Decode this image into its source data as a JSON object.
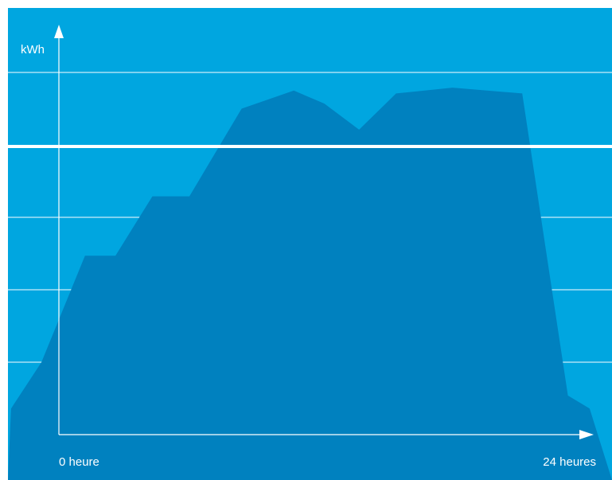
{
  "colors": {
    "background": "#00a6e0",
    "area": "#0081bf",
    "grid": "#ffffff",
    "axis": "#ffffff",
    "text": "#ffffff"
  },
  "chart_data": {
    "type": "area",
    "title": "",
    "ylabel": "kWh",
    "xlabel": "",
    "x_tick_labels": [
      "0 heure",
      "24 heures"
    ],
    "grid": true,
    "threshold_line": true,
    "series": [
      {
        "x": [
          -2.2,
          -0.8,
          1.2,
          2.6,
          4.3,
          6.0,
          8.4,
          10.8,
          12.2,
          13.8,
          15.5,
          18.1,
          21.3,
          23.4,
          24.4
        ],
        "values": [
          0.36,
          1.0,
          2.47,
          2.47,
          3.29,
          3.29,
          4.5,
          4.75,
          4.57,
          4.21,
          4.71,
          4.79,
          4.71,
          0.54,
          0.36
        ]
      }
    ]
  }
}
